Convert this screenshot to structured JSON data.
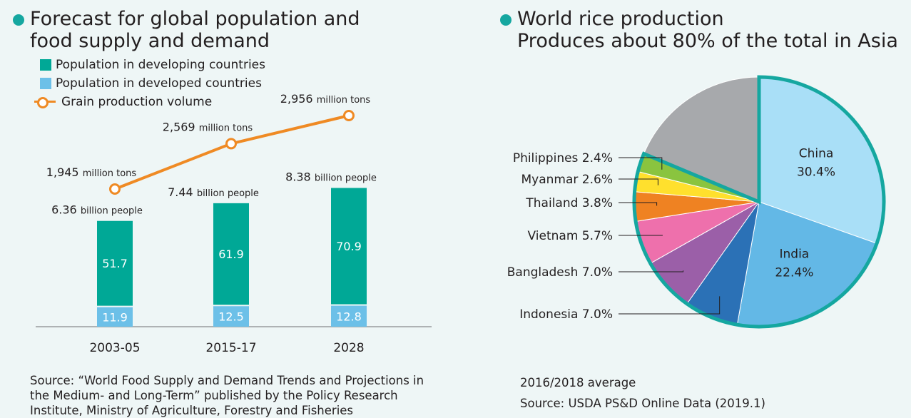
{
  "left": {
    "title_lines": [
      "Forecast for global population and",
      "food supply and demand"
    ],
    "legend": [
      {
        "label": "Population in developing countries",
        "kind": "box",
        "color": "#00a896"
      },
      {
        "label": "Population in developed countries",
        "kind": "box",
        "color": "#6cc0e8"
      },
      {
        "label": "Grain production volume",
        "kind": "line",
        "color": "#ef8a24"
      }
    ],
    "source_lines": [
      "Source:  “World Food Supply and Demand Trends and Projections in",
      "the Medium- and Long-Term” published by the Policy Research",
      "Institute, Ministry of Agriculture, Forestry and Fisheries"
    ]
  },
  "right": {
    "title_lines": [
      "World rice production",
      "Produces about 80% of the total in Asia"
    ],
    "notes": [
      "2016/2018 average",
      "Source: USDA PS&D Online Data (2019.1)"
    ]
  },
  "chart_data": [
    {
      "type": "bar",
      "categories": [
        "2003-05",
        "2015-17",
        "2028"
      ],
      "series": [
        {
          "name": "Population in developing countries",
          "values": [
            51.7,
            61.9,
            70.9
          ],
          "color": "#00a896"
        },
        {
          "name": "Population in developed countries",
          "values": [
            11.9,
            12.5,
            12.8
          ],
          "color": "#6cc0e8"
        }
      ],
      "totals": [
        {
          "value": "6.36",
          "unit": "billion people"
        },
        {
          "value": "7.44",
          "unit": "billion people"
        },
        {
          "value": "8.38",
          "unit": "billion people"
        }
      ],
      "line_series": {
        "name": "Grain production volume",
        "values": [
          1945,
          2569,
          2956
        ],
        "labels": [
          {
            "value": "1,945",
            "unit": "million tons"
          },
          {
            "value": "2,569",
            "unit": "million tons"
          },
          {
            "value": "2,956",
            "unit": "million tons"
          }
        ],
        "color": "#ef8a24"
      }
    },
    {
      "type": "pie",
      "slices": [
        {
          "label": "China",
          "value": 30.4,
          "text": "30.4%",
          "color": "#a9dff7",
          "asia": true
        },
        {
          "label": "India",
          "value": 22.4,
          "text": "22.4%",
          "color": "#63b8e6",
          "asia": true
        },
        {
          "label": "Indonesia",
          "value": 7.0,
          "text": "Indonesia 7.0%",
          "color": "#2b71b6",
          "asia": true
        },
        {
          "label": "Bangladesh",
          "value": 7.0,
          "text": "Bangladesh 7.0%",
          "color": "#9b5fa8",
          "asia": true
        },
        {
          "label": "Vietnam",
          "value": 5.7,
          "text": "Vietnam 5.7%",
          "color": "#ee70ac",
          "asia": true
        },
        {
          "label": "Thailand",
          "value": 3.8,
          "text": "Thailand 3.8%",
          "color": "#ef8222",
          "asia": true
        },
        {
          "label": "Myanmar",
          "value": 2.6,
          "text": "Myanmar 2.6%",
          "color": "#ffe02d",
          "asia": true
        },
        {
          "label": "Philippines",
          "value": 2.4,
          "text": "Philippines 2.4%",
          "color": "#8ac43f",
          "asia": true
        },
        {
          "label": "",
          "value": 18.7,
          "text": "",
          "color": "#a7a9ac",
          "asia": false
        }
      ],
      "highlight_color": "#15a7a0"
    }
  ]
}
